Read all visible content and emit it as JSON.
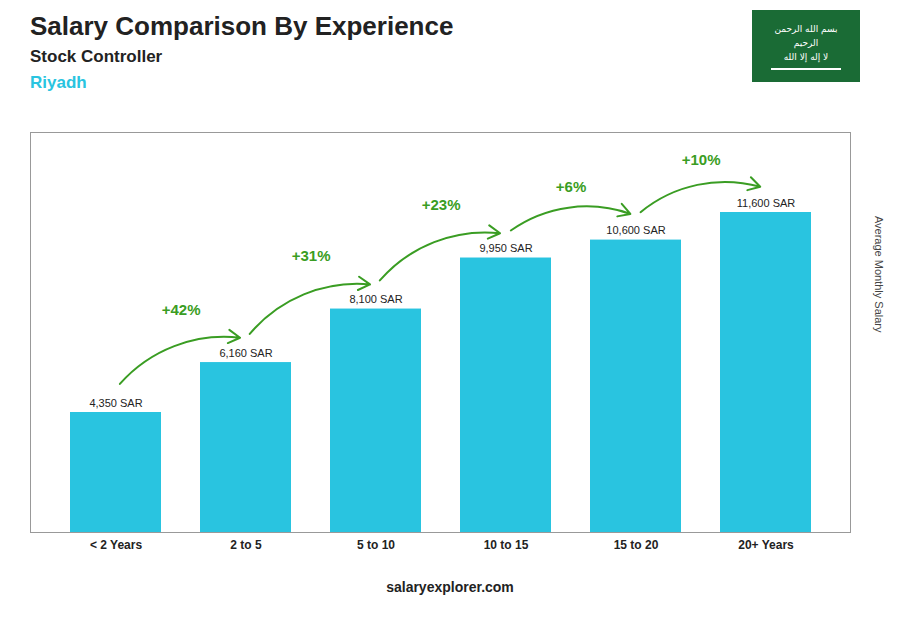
{
  "chart_data": {
    "type": "bar",
    "title": "Salary Comparison By Experience",
    "subtitle": "Stock Controller",
    "ylabel": "Average Monthly Salary",
    "categories": [
      "< 2 Years",
      "2 to 5",
      "5 to 10",
      "10 to 15",
      "15 to 20",
      "20+ Years"
    ],
    "values": [
      4350,
      6160,
      8100,
      9950,
      10600,
      11600
    ],
    "value_labels": [
      "4,350 SAR",
      "6,160 SAR",
      "8,100 SAR",
      "9,950 SAR",
      "10,600 SAR",
      "11,600 SAR"
    ],
    "data_labels": true,
    "color": "#29c4e0",
    "ylim": [
      0,
      14500
    ],
    "tick_labels": "x",
    "grid": false,
    "annotations": [
      {
        "text": "Riyadh"
      },
      {
        "text": "salaryexplorer.com"
      },
      {
        "text": "بسم الله الرحمن"
      },
      {
        "text": "الرحيم"
      },
      {
        "text": "لا إله إلا الله"
      },
      {
        "text": "+42%",
        "from": "< 2 Years",
        "to": "2 to 5"
      },
      {
        "text": "+31%",
        "from": "2 to 5",
        "to": "5 to 10"
      },
      {
        "text": "+23%",
        "from": "5 to 10",
        "to": "10 to 15"
      },
      {
        "text": "+6%",
        "from": "10 to 15",
        "to": "15 to 20"
      },
      {
        "text": "+10%",
        "from": "15 to 20",
        "to": "20+ Years"
      }
    ]
  }
}
